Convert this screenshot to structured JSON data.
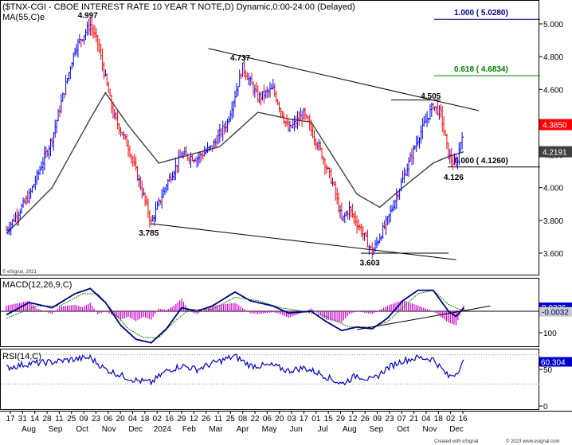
{
  "chart_data": {
    "type": "line",
    "title": "($TNX-CGI - CBOE INTEREST RATE 10 YEAR T NOTE,D) Dynamic,0:00-24:00 (Delayed)",
    "ma_label": "MA(55,C)e",
    "watermark": "© eSignal, 2021",
    "footer_left": "Created with eSignal",
    "footer_right": "© 2023 www.esignal.com",
    "price_axis": {
      "min": 3.5,
      "max": 5.1,
      "ticks": [
        "3.600",
        "3.800",
        "4.000",
        "4.200",
        "4.400",
        "4.600",
        "4.800",
        "5.000"
      ]
    },
    "x_tick_labels": [
      "17",
      "31",
      "14",
      "28",
      "11",
      "25",
      "09",
      "23",
      "06",
      "20",
      "04",
      "18",
      "02",
      "16",
      "29",
      "12",
      "26",
      "11",
      "25",
      "08",
      "22",
      "06",
      "20",
      "03",
      "17",
      "01",
      "15",
      "29",
      "12",
      "26",
      "09",
      "23",
      "07",
      "21",
      "04",
      "18",
      "02",
      "16"
    ],
    "month_labels": [
      "Aug",
      "Sep",
      "Oct",
      "Nov",
      "Dec",
      "2024",
      "Feb",
      "Mar",
      "Apr",
      "May",
      "Jun",
      "Jul",
      "Aug",
      "Sep",
      "Oct",
      "Nov",
      "Dec"
    ],
    "price_key_points": [
      {
        "i": 0,
        "v": 3.74
      },
      {
        "i": 3,
        "v": 3.95
      },
      {
        "i": 6,
        "v": 4.3
      },
      {
        "i": 9,
        "v": 4.85
      },
      {
        "i": 11,
        "v": 4.997
      },
      {
        "i": 12,
        "v": 4.88
      },
      {
        "i": 14,
        "v": 4.45
      },
      {
        "i": 16,
        "v": 4.25
      },
      {
        "i": 18,
        "v": 3.95
      },
      {
        "i": 19,
        "v": 3.785
      },
      {
        "i": 21,
        "v": 4.02
      },
      {
        "i": 23,
        "v": 4.2
      },
      {
        "i": 25,
        "v": 4.18
      },
      {
        "i": 27,
        "v": 4.25
      },
      {
        "i": 29,
        "v": 4.4
      },
      {
        "i": 31,
        "v": 4.737
      },
      {
        "i": 33,
        "v": 4.55
      },
      {
        "i": 35,
        "v": 4.6
      },
      {
        "i": 37,
        "v": 4.35
      },
      {
        "i": 39,
        "v": 4.45
      },
      {
        "i": 41,
        "v": 4.25
      },
      {
        "i": 43,
        "v": 4.0
      },
      {
        "i": 44,
        "v": 3.8
      },
      {
        "i": 45,
        "v": 3.87
      },
      {
        "i": 47,
        "v": 3.7
      },
      {
        "i": 48,
        "v": 3.603
      },
      {
        "i": 50,
        "v": 3.8
      },
      {
        "i": 52,
        "v": 4.05
      },
      {
        "i": 54,
        "v": 4.3
      },
      {
        "i": 56,
        "v": 4.505
      },
      {
        "i": 57,
        "v": 4.45
      },
      {
        "i": 58,
        "v": 4.2
      },
      {
        "i": 59,
        "v": 4.126
      },
      {
        "i": 60,
        "v": 4.385
      }
    ],
    "ma_key_points": [
      {
        "i": 0,
        "v": 3.72
      },
      {
        "i": 6,
        "v": 4.0
      },
      {
        "i": 11,
        "v": 4.42
      },
      {
        "i": 13,
        "v": 4.58
      },
      {
        "i": 16,
        "v": 4.38
      },
      {
        "i": 20,
        "v": 4.15
      },
      {
        "i": 24,
        "v": 4.2
      },
      {
        "i": 28,
        "v": 4.25
      },
      {
        "i": 33,
        "v": 4.46
      },
      {
        "i": 37,
        "v": 4.42
      },
      {
        "i": 40,
        "v": 4.4
      },
      {
        "i": 43,
        "v": 4.18
      },
      {
        "i": 46,
        "v": 3.96
      },
      {
        "i": 49,
        "v": 3.88
      },
      {
        "i": 52,
        "v": 4.0
      },
      {
        "i": 56,
        "v": 4.15
      },
      {
        "i": 58,
        "v": 4.19
      },
      {
        "i": 60,
        "v": 4.219
      }
    ],
    "annotations": [
      {
        "text": "4.997",
        "i": 11,
        "v": 4.997,
        "pos": "above"
      },
      {
        "text": "3.785",
        "i": 19,
        "v": 3.785,
        "pos": "below"
      },
      {
        "text": "4.737",
        "i": 31,
        "v": 4.737,
        "pos": "above"
      },
      {
        "text": "3.603",
        "i": 48,
        "v": 3.603,
        "pos": "below"
      },
      {
        "text": "4.505",
        "i": 56,
        "v": 4.505,
        "pos": "above"
      },
      {
        "text": "4.126",
        "i": 59,
        "v": 4.126,
        "pos": "below"
      }
    ],
    "trendlines": [
      {
        "from": {
          "i": 26.5,
          "v": 4.85
        },
        "to": {
          "i": 62,
          "v": 4.47
        },
        "color": "#000000"
      },
      {
        "from": {
          "i": 19,
          "v": 3.78
        },
        "to": {
          "i": 59,
          "v": 3.56
        },
        "color": "#000000"
      },
      {
        "from": {
          "i": 50.5,
          "v": 4.535
        },
        "to": {
          "i": 57,
          "v": 4.535
        },
        "color": "#000000"
      },
      {
        "from": {
          "i": 46.5,
          "v": 3.6
        },
        "to": {
          "i": 58,
          "v": 3.6
        },
        "color": "#000000"
      }
    ],
    "fib_levels": [
      {
        "label": "1.000 ( 5.0280)",
        "value": 5.028,
        "color": "#000080"
      },
      {
        "label": "0.618 ( 4.6834)",
        "value": 4.6834,
        "color": "#008000"
      },
      {
        "label": "0.000 ( 4.1260)",
        "value": 4.126,
        "color": "#000000"
      }
    ],
    "price_badges": [
      {
        "text": "4.3850",
        "value": 4.385,
        "bg": "#ff0000",
        "fg": "#ffffff"
      },
      {
        "text": "4.2191",
        "value": 4.2191,
        "bg": "#404040",
        "fg": "#ffffff"
      }
    ],
    "macd": {
      "label": "MACD(12,26,9,C)",
      "min": -0.25,
      "max": 0.2,
      "line_key_points": [
        {
          "i": 0,
          "v": -0.02
        },
        {
          "i": 3,
          "v": 0.05
        },
        {
          "i": 6,
          "v": 0.02
        },
        {
          "i": 9,
          "v": 0.1
        },
        {
          "i": 11,
          "v": 0.13
        },
        {
          "i": 13,
          "v": 0.05
        },
        {
          "i": 15,
          "v": -0.08
        },
        {
          "i": 17,
          "v": -0.16
        },
        {
          "i": 19,
          "v": -0.18
        },
        {
          "i": 21,
          "v": -0.1
        },
        {
          "i": 23,
          "v": 0.02
        },
        {
          "i": 25,
          "v": 0.0
        },
        {
          "i": 27,
          "v": 0.03
        },
        {
          "i": 30,
          "v": 0.11
        },
        {
          "i": 32,
          "v": 0.06
        },
        {
          "i": 35,
          "v": 0.03
        },
        {
          "i": 37,
          "v": -0.01
        },
        {
          "i": 40,
          "v": 0.0
        },
        {
          "i": 42,
          "v": -0.06
        },
        {
          "i": 44,
          "v": -0.11
        },
        {
          "i": 46,
          "v": -0.09
        },
        {
          "i": 48,
          "v": -0.1
        },
        {
          "i": 50,
          "v": -0.04
        },
        {
          "i": 52,
          "v": 0.06
        },
        {
          "i": 54,
          "v": 0.12
        },
        {
          "i": 56,
          "v": 0.12
        },
        {
          "i": 58,
          "v": 0.0
        },
        {
          "i": 59,
          "v": -0.03
        },
        {
          "i": 60,
          "v": 0.02
        }
      ],
      "signal_key_points": [
        {
          "i": 0,
          "v": -0.04
        },
        {
          "i": 4,
          "v": 0.03
        },
        {
          "i": 7,
          "v": 0.03
        },
        {
          "i": 10,
          "v": 0.1
        },
        {
          "i": 12,
          "v": 0.1
        },
        {
          "i": 14,
          "v": 0.0
        },
        {
          "i": 16,
          "v": -0.1
        },
        {
          "i": 18,
          "v": -0.15
        },
        {
          "i": 20,
          "v": -0.15
        },
        {
          "i": 22,
          "v": -0.06
        },
        {
          "i": 24,
          "v": 0.01
        },
        {
          "i": 27,
          "v": 0.01
        },
        {
          "i": 30,
          "v": 0.08
        },
        {
          "i": 33,
          "v": 0.06
        },
        {
          "i": 36,
          "v": 0.02
        },
        {
          "i": 39,
          "v": 0.0
        },
        {
          "i": 42,
          "v": -0.03
        },
        {
          "i": 45,
          "v": -0.09
        },
        {
          "i": 48,
          "v": -0.09
        },
        {
          "i": 50,
          "v": -0.06
        },
        {
          "i": 52,
          "v": 0.02
        },
        {
          "i": 54,
          "v": 0.1
        },
        {
          "i": 56,
          "v": 0.12
        },
        {
          "i": 58,
          "v": 0.04
        },
        {
          "i": 60,
          "v": 0.0
        }
      ],
      "trendline": {
        "from": {
          "i": 46,
          "v": -0.105
        },
        "to": {
          "i": 63.5,
          "v": 0.03
        }
      },
      "badges": [
        {
          "text": "0.0226",
          "value": 0.0226,
          "bg": "#0000cc",
          "fg": "#ffffff"
        },
        {
          "text": "-0.0032",
          "value": -0.0032,
          "bg": "#cccccc",
          "fg": "#000080"
        }
      ]
    },
    "rsi": {
      "label": "RSI(14,C)",
      "min": 0,
      "max": 100,
      "ticks": [
        "100",
        "50",
        "0"
      ],
      "ref_lines": [
        70,
        30
      ],
      "key_points": [
        {
          "i": 0,
          "v": 52
        },
        {
          "i": 3,
          "v": 58
        },
        {
          "i": 6,
          "v": 60
        },
        {
          "i": 9,
          "v": 64
        },
        {
          "i": 11,
          "v": 66
        },
        {
          "i": 13,
          "v": 50
        },
        {
          "i": 15,
          "v": 42
        },
        {
          "i": 17,
          "v": 35
        },
        {
          "i": 19,
          "v": 32
        },
        {
          "i": 21,
          "v": 48
        },
        {
          "i": 23,
          "v": 55
        },
        {
          "i": 25,
          "v": 50
        },
        {
          "i": 27,
          "v": 58
        },
        {
          "i": 30,
          "v": 68
        },
        {
          "i": 32,
          "v": 55
        },
        {
          "i": 35,
          "v": 55
        },
        {
          "i": 37,
          "v": 48
        },
        {
          "i": 39,
          "v": 52
        },
        {
          "i": 41,
          "v": 45
        },
        {
          "i": 43,
          "v": 35
        },
        {
          "i": 44,
          "v": 30
        },
        {
          "i": 46,
          "v": 42
        },
        {
          "i": 48,
          "v": 35
        },
        {
          "i": 50,
          "v": 52
        },
        {
          "i": 52,
          "v": 62
        },
        {
          "i": 54,
          "v": 66
        },
        {
          "i": 56,
          "v": 64
        },
        {
          "i": 58,
          "v": 40
        },
        {
          "i": 59,
          "v": 45
        },
        {
          "i": 60,
          "v": 60
        }
      ],
      "badge": {
        "text": "60.304",
        "value": 60.304,
        "bg": "#0000cc",
        "fg": "#ffffff"
      }
    }
  }
}
